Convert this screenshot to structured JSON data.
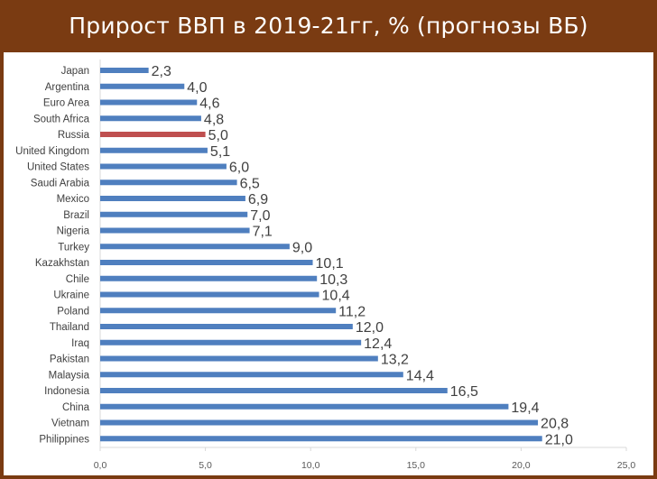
{
  "title": "Прирост ВВП в 2019-21гг, % (прогнозы ВБ)",
  "colors": {
    "background": "#7a3b12",
    "bar": "#4f7fbf",
    "highlight_bar": "#bf4f4f",
    "highlight_label": "#c00000",
    "label": "#404040",
    "axis": "#d9d9d9"
  },
  "chart_data": {
    "type": "bar",
    "orientation": "horizontal",
    "title": "Прирост ВВП в 2019-21гг, % (прогнозы ВБ)",
    "categories": [
      "Japan",
      "Argentina",
      "Euro Area",
      "South Africa",
      "Russia",
      "United Kingdom",
      "United States",
      "Saudi Arabia",
      "Mexico",
      "Brazil",
      "Nigeria",
      "Turkey",
      "Kazakhstan",
      "Chile",
      "Ukraine",
      "Poland",
      "Thailand",
      "Iraq",
      "Pakistan",
      "Malaysia",
      "Indonesia",
      "China",
      "Vietnam",
      "Philippines"
    ],
    "values": [
      2.3,
      4.0,
      4.6,
      4.8,
      5.0,
      5.1,
      6.0,
      6.5,
      6.9,
      7.0,
      7.1,
      9.0,
      10.1,
      10.3,
      10.4,
      11.2,
      12.0,
      12.4,
      13.2,
      14.4,
      16.5,
      19.4,
      20.8,
      21.0
    ],
    "value_labels": [
      "2,3",
      "4,0",
      "4,6",
      "4,8",
      "5,0",
      "5,1",
      "6,0",
      "6,5",
      "6,9",
      "7,0",
      "7,1",
      "9,0",
      "10,1",
      "10,3",
      "10,4",
      "11,2",
      "12,0",
      "12,4",
      "13,2",
      "14,4",
      "16,5",
      "19,4",
      "20,8",
      "21,0"
    ],
    "highlight": "Russia",
    "xlim": [
      0,
      25
    ],
    "xticks": [
      0,
      5,
      10,
      15,
      20,
      25
    ],
    "xtick_labels": [
      "0,0",
      "5,0",
      "10,0",
      "15,0",
      "20,0",
      "25,0"
    ],
    "xlabel": "",
    "ylabel": "",
    "grid": false,
    "legend": "none"
  }
}
